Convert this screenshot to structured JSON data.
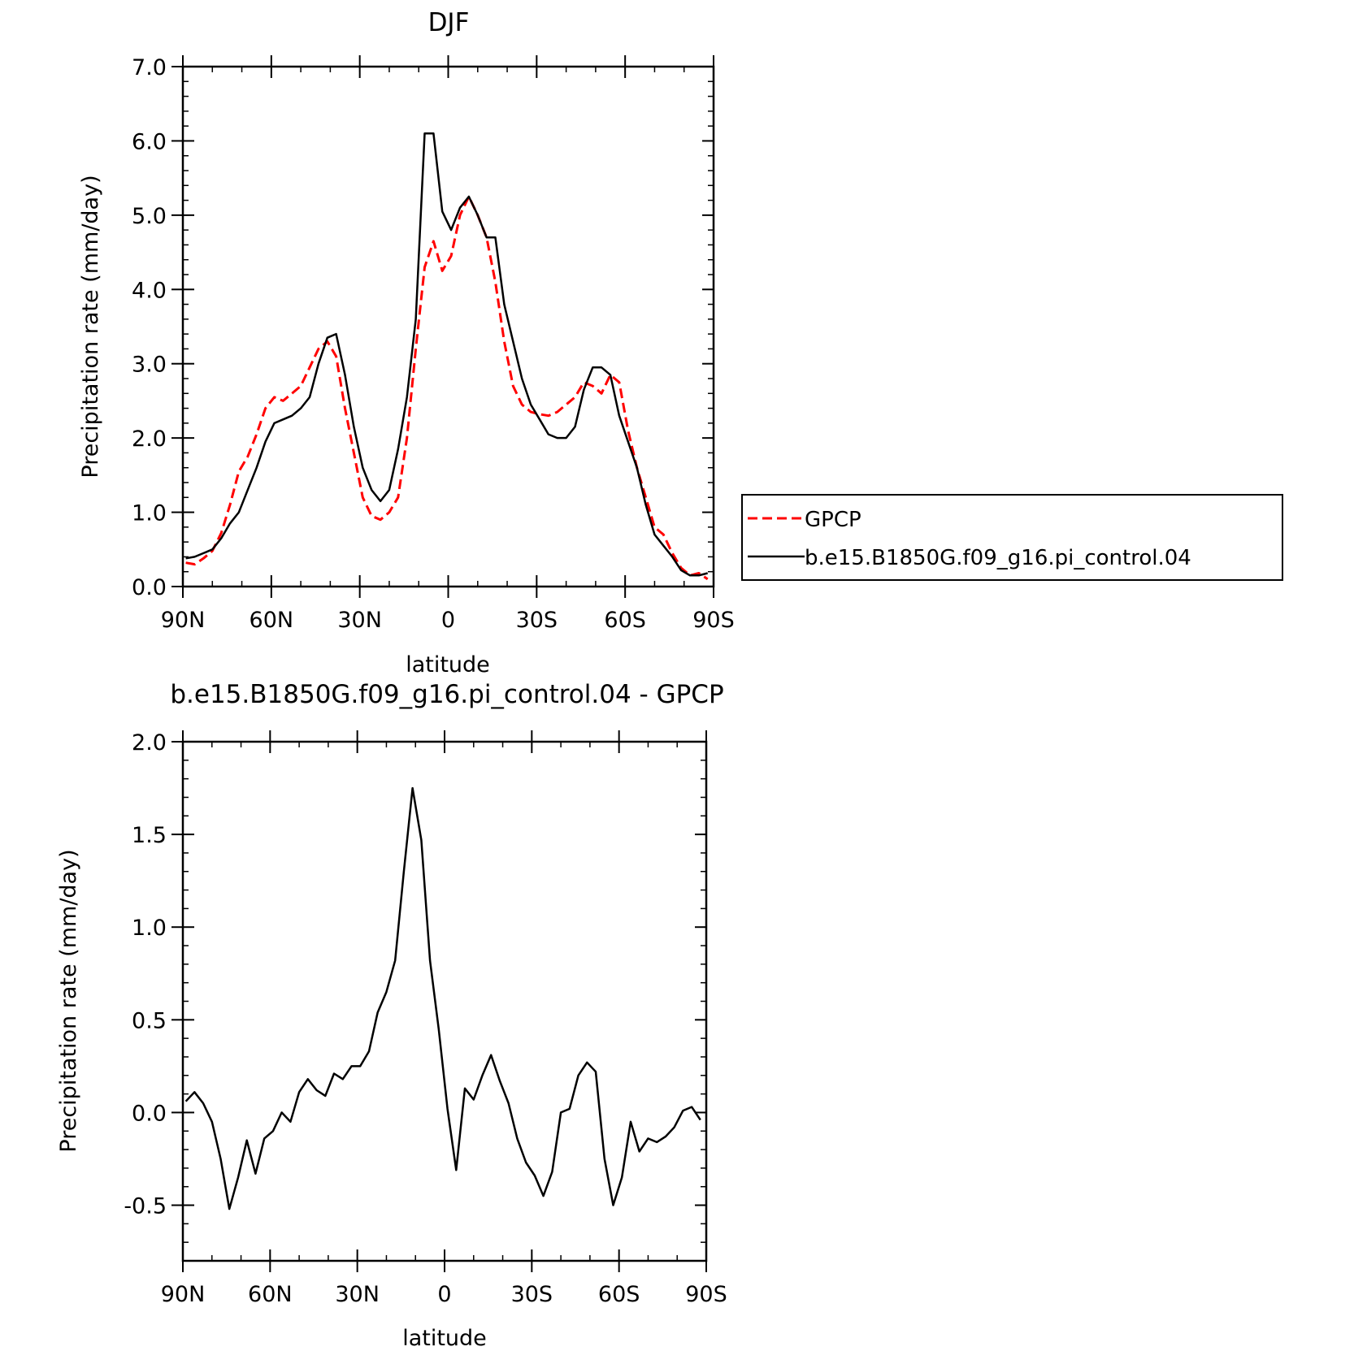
{
  "chart_data": [
    {
      "type": "line",
      "title": "DJF",
      "xlabel": "latitude",
      "ylabel": "Precipitation rate (mm/day)",
      "xlim": [
        90,
        -90
      ],
      "ylim": [
        0,
        7
      ],
      "grid": false,
      "legend_position": "right-outside",
      "x_ticks": [
        90,
        60,
        30,
        0,
        -30,
        -60,
        -90
      ],
      "x_tick_labels": [
        "90N",
        "60N",
        "30N",
        "0",
        "30S",
        "60S",
        "90S"
      ],
      "y_ticks": [
        0,
        1,
        2,
        3,
        4,
        5,
        6,
        7
      ],
      "y_tick_labels": [
        "0.0",
        "1.0",
        "2.0",
        "3.0",
        "4.0",
        "5.0",
        "6.0",
        "7.0"
      ],
      "series": [
        {
          "name": "GPCP",
          "color": "#ff0000",
          "dash": "dashed",
          "x": [
            89,
            86,
            83,
            80,
            77,
            74,
            71,
            68,
            65,
            62,
            59,
            56,
            53,
            50,
            47,
            44,
            41,
            38,
            35,
            32,
            29,
            26,
            23,
            20,
            17,
            14,
            11,
            8,
            5,
            2,
            -1,
            -4,
            -7,
            -10,
            -13,
            -16,
            -19,
            -22,
            -25,
            -28,
            -31,
            -34,
            -37,
            -40,
            -43,
            -46,
            -49,
            -52,
            -55,
            -58,
            -61,
            -64,
            -67,
            -70,
            -73,
            -76,
            -79,
            -82,
            -85,
            -88
          ],
          "y": [
            0.32,
            0.3,
            0.38,
            0.48,
            0.72,
            1.1,
            1.55,
            1.75,
            2.05,
            2.4,
            2.55,
            2.5,
            2.6,
            2.7,
            2.95,
            3.2,
            3.3,
            3.1,
            2.4,
            1.8,
            1.2,
            0.95,
            0.9,
            1.0,
            1.2,
            2.0,
            3.2,
            4.3,
            4.65,
            4.25,
            4.45,
            5.0,
            5.25,
            5.0,
            4.7,
            4.1,
            3.3,
            2.7,
            2.45,
            2.35,
            2.32,
            2.3,
            2.35,
            2.45,
            2.55,
            2.75,
            2.7,
            2.6,
            2.85,
            2.75,
            2.1,
            1.6,
            1.2,
            0.8,
            0.7,
            0.45,
            0.25,
            0.15,
            0.18,
            0.1
          ]
        },
        {
          "name": "b.e15.B1850G.f09_g16.pi_control.04",
          "color": "#000000",
          "dash": "solid",
          "x": [
            89,
            86,
            83,
            80,
            77,
            74,
            71,
            68,
            65,
            62,
            59,
            56,
            53,
            50,
            47,
            44,
            41,
            38,
            35,
            32,
            29,
            26,
            23,
            20,
            17,
            14,
            11,
            8,
            5,
            2,
            -1,
            -4,
            -7,
            -10,
            -13,
            -16,
            -19,
            -22,
            -25,
            -28,
            -31,
            -34,
            -37,
            -40,
            -43,
            -46,
            -49,
            -52,
            -55,
            -58,
            -61,
            -64,
            -67,
            -70,
            -73,
            -76,
            -79,
            -82,
            -85,
            -88
          ],
          "y": [
            0.38,
            0.4,
            0.45,
            0.5,
            0.65,
            0.85,
            1.0,
            1.3,
            1.6,
            1.95,
            2.2,
            2.25,
            2.3,
            2.4,
            2.55,
            3.0,
            3.35,
            3.4,
            2.85,
            2.15,
            1.6,
            1.3,
            1.15,
            1.3,
            1.85,
            2.55,
            3.6,
            6.1,
            6.1,
            5.05,
            4.8,
            5.1,
            5.25,
            5.0,
            4.7,
            4.7,
            3.8,
            3.3,
            2.8,
            2.45,
            2.25,
            2.05,
            2.0,
            2.0,
            2.15,
            2.65,
            2.95,
            2.95,
            2.85,
            2.3,
            1.95,
            1.6,
            1.1,
            0.7,
            0.55,
            0.4,
            0.22,
            0.15,
            0.15,
            0.18
          ]
        }
      ]
    },
    {
      "type": "line",
      "title": "b.e15.B1850G.f09_g16.pi_control.04 - GPCP",
      "xlabel": "latitude",
      "ylabel": "Precipitation rate (mm/day)",
      "xlim": [
        90,
        -90
      ],
      "ylim": [
        -0.8,
        2.0
      ],
      "grid": false,
      "x_ticks": [
        90,
        60,
        30,
        0,
        -30,
        -60,
        -90
      ],
      "x_tick_labels": [
        "90N",
        "60N",
        "30N",
        "0",
        "30S",
        "60S",
        "90S"
      ],
      "y_ticks": [
        -0.5,
        0,
        0.5,
        1.0,
        1.5,
        2.0
      ],
      "y_tick_labels": [
        "-0.5",
        "0.0",
        "0.5",
        "1.0",
        "1.5",
        "2.0"
      ],
      "series": [
        {
          "name": "",
          "color": "#000000",
          "dash": "solid",
          "x": [
            89,
            86,
            83,
            80,
            77,
            74,
            71,
            68,
            65,
            62,
            59,
            56,
            53,
            50,
            47,
            44,
            41,
            38,
            35,
            32,
            29,
            26,
            23,
            20,
            17,
            14,
            11,
            8,
            5,
            2,
            -1,
            -4,
            -7,
            -10,
            -13,
            -16,
            -19,
            -22,
            -25,
            -28,
            -31,
            -34,
            -37,
            -40,
            -43,
            -46,
            -49,
            -52,
            -55,
            -58,
            -61,
            -64,
            -67,
            -70,
            -73,
            -76,
            -79,
            -82,
            -85,
            -88
          ],
          "y": [
            0.06,
            0.11,
            0.05,
            -0.05,
            -0.25,
            -0.52,
            -0.35,
            -0.15,
            -0.33,
            -0.14,
            -0.1,
            0.0,
            -0.05,
            0.11,
            0.18,
            0.12,
            0.09,
            0.21,
            0.18,
            0.25,
            0.25,
            0.33,
            0.54,
            0.65,
            0.82,
            1.3,
            1.75,
            1.47,
            0.82,
            0.45,
            0.02,
            -0.31,
            0.13,
            0.07,
            0.2,
            0.31,
            0.17,
            0.05,
            -0.14,
            -0.27,
            -0.34,
            -0.45,
            -0.32,
            0.0,
            0.02,
            0.2,
            0.27,
            0.22,
            -0.25,
            -0.5,
            -0.35,
            -0.05,
            -0.21,
            -0.14,
            -0.16,
            -0.13,
            -0.08,
            0.01,
            0.03,
            -0.04
          ]
        }
      ]
    }
  ]
}
